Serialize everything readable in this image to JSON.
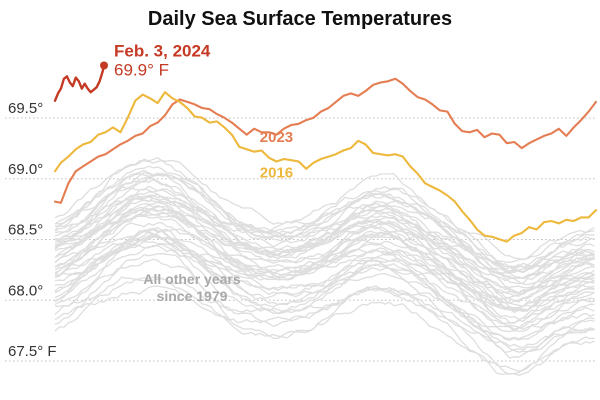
{
  "chart_data": {
    "type": "line",
    "title": "Daily Sea Surface Temperatures",
    "xlabel": "",
    "ylabel": "",
    "ylim": [
      67.4,
      69.9
    ],
    "y_ticks": [
      {
        "value": 69.5,
        "label": "69.5°"
      },
      {
        "value": 69.0,
        "label": "69.0°"
      },
      {
        "value": 68.5,
        "label": "68.5°"
      },
      {
        "value": 68.0,
        "label": "68.0°"
      },
      {
        "value": 67.5,
        "label": "67.5° F"
      }
    ],
    "x_domain": [
      1,
      365
    ],
    "x_axis_labels_shown": false,
    "grid": "horizontal dotted",
    "annotation": {
      "date": "Feb. 3, 2024",
      "value_text": "69.9° F",
      "x": 34,
      "y": 69.85
    },
    "background_label": {
      "lines": [
        "All other years",
        "since 1979"
      ]
    },
    "colors": {
      "background_years": "#dedede",
      "y2023": "#e57d52",
      "y2016": "#edb83c",
      "y2024": "#c53a24",
      "gridline": "#bdbdbd",
      "axis_text": "#333333"
    },
    "series": [
      {
        "name": "2024",
        "color": "#c53a24",
        "x": [
          1,
          3,
          5,
          7,
          9,
          11,
          13,
          15,
          17,
          19,
          21,
          23,
          25,
          27,
          29,
          31,
          33,
          34
        ],
        "y": [
          69.56,
          69.62,
          69.66,
          69.74,
          69.76,
          69.71,
          69.68,
          69.75,
          69.72,
          69.66,
          69.7,
          69.66,
          69.63,
          69.65,
          69.67,
          69.72,
          69.8,
          69.85
        ]
      },
      {
        "name": "2023",
        "color": "#e57d52",
        "x": [
          1,
          5,
          10,
          15,
          20,
          25,
          30,
          35,
          40,
          45,
          50,
          55,
          60,
          65,
          70,
          75,
          80,
          85,
          90,
          95,
          100,
          105,
          110,
          115,
          120,
          125,
          130,
          135,
          140,
          145,
          150,
          155,
          160,
          165,
          170,
          175,
          180,
          185,
          190,
          195,
          200,
          205,
          210,
          215,
          220,
          225,
          230,
          235,
          240,
          245,
          250,
          255,
          260,
          265,
          270,
          275,
          280,
          285,
          290,
          295,
          300,
          305,
          310,
          315,
          320,
          325,
          330,
          335,
          340,
          345,
          350,
          355,
          360,
          365
        ],
        "y": [
          68.73,
          68.72,
          68.88,
          68.98,
          69.02,
          69.06,
          69.1,
          69.12,
          69.16,
          69.2,
          69.23,
          69.27,
          69.29,
          69.35,
          69.38,
          69.44,
          69.53,
          69.57,
          69.55,
          69.53,
          69.5,
          69.49,
          69.45,
          69.42,
          69.38,
          69.33,
          69.28,
          69.33,
          69.3,
          69.3,
          69.28,
          69.33,
          69.36,
          69.37,
          69.4,
          69.42,
          69.47,
          69.5,
          69.55,
          69.6,
          69.62,
          69.6,
          69.64,
          69.69,
          69.71,
          69.72,
          69.74,
          69.7,
          69.64,
          69.59,
          69.57,
          69.53,
          69.48,
          69.47,
          69.37,
          69.31,
          69.3,
          69.32,
          69.26,
          69.29,
          69.28,
          69.21,
          69.22,
          69.17,
          69.21,
          69.24,
          69.27,
          69.29,
          69.33,
          69.27,
          69.34,
          69.4,
          69.47,
          69.55
        ]
      },
      {
        "name": "2016",
        "color": "#edb83c",
        "x": [
          1,
          5,
          10,
          15,
          20,
          25,
          30,
          35,
          40,
          45,
          50,
          55,
          60,
          65,
          70,
          75,
          80,
          85,
          90,
          95,
          100,
          105,
          110,
          115,
          120,
          125,
          130,
          135,
          140,
          145,
          150,
          155,
          160,
          165,
          170,
          175,
          180,
          185,
          190,
          195,
          200,
          205,
          210,
          215,
          220,
          225,
          230,
          235,
          240,
          245,
          250,
          255,
          260,
          265,
          270,
          275,
          280,
          285,
          290,
          295,
          300,
          305,
          310,
          315,
          320,
          325,
          330,
          335,
          340,
          345,
          350,
          355,
          360,
          365
        ],
        "y": [
          68.98,
          69.05,
          69.1,
          69.16,
          69.2,
          69.22,
          69.28,
          69.3,
          69.34,
          69.3,
          69.42,
          69.56,
          69.61,
          69.58,
          69.54,
          69.63,
          69.58,
          69.55,
          69.5,
          69.43,
          69.42,
          69.38,
          69.39,
          69.34,
          69.28,
          69.18,
          69.16,
          69.14,
          69.15,
          69.09,
          69.06,
          69.08,
          69.07,
          69.06,
          69.0,
          69.05,
          69.08,
          69.1,
          69.12,
          69.15,
          69.17,
          69.23,
          69.2,
          69.13,
          69.12,
          69.11,
          69.12,
          69.1,
          69.02,
          68.96,
          68.88,
          68.85,
          68.82,
          68.78,
          68.73,
          68.65,
          68.58,
          68.5,
          68.45,
          68.44,
          68.42,
          68.4,
          68.45,
          68.47,
          68.52,
          68.5,
          68.56,
          68.57,
          68.55,
          68.58,
          68.57,
          68.6,
          68.6,
          68.66
        ]
      }
    ]
  }
}
